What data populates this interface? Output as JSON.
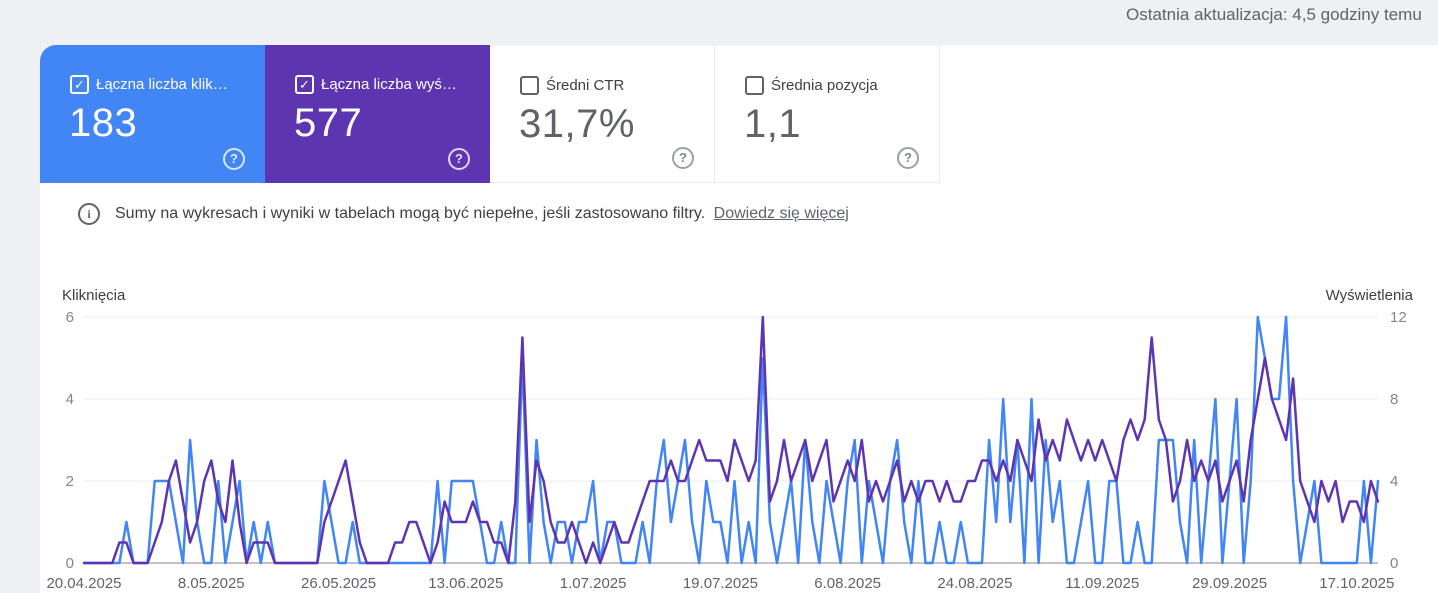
{
  "topbar": {
    "last_update": "Ostatnia aktualizacja: 4,5 godziny temu"
  },
  "colors": {
    "clicks": "#4285f4",
    "impressions": "#5e35b1",
    "grid": "#e9ebee",
    "zero_line": "#80868b",
    "tick_text": "#80868b",
    "date_text": "#5f6368"
  },
  "icons": {
    "checked": "✓",
    "help": "?",
    "info": "i"
  },
  "cards": [
    {
      "id": "clicks",
      "label": "Łączna liczba klik…",
      "value": "183",
      "selected": true
    },
    {
      "id": "impressions",
      "label": "Łączna liczba wyś…",
      "value": "577",
      "selected": true
    },
    {
      "id": "ctr",
      "label": "Średni CTR",
      "value": "31,7%",
      "selected": false
    },
    {
      "id": "position",
      "label": "Średnia pozycja",
      "value": "1,1",
      "selected": false
    }
  ],
  "notice": {
    "text": "Sumy na wykresach i wyniki w tabelach mogą być niepełne, jeśli zastosowano filtry.",
    "link": "Dowiedz się więcej"
  },
  "chart_data": {
    "type": "line",
    "left_axis": {
      "label": "Kliknięcia",
      "ticks": [
        0,
        2,
        4,
        6
      ],
      "max": 6
    },
    "right_axis": {
      "label": "Wyświetlenia",
      "ticks": [
        0,
        4,
        8,
        12
      ],
      "max": 12
    },
    "x_tick_labels": [
      "20.04.2025",
      "8.05.2025",
      "26.05.2025",
      "13.06.2025",
      "1.07.2025",
      "19.07.2025",
      "6.08.2025",
      "24.08.2025",
      "11.09.2025",
      "29.09.2025",
      "17.10.2025"
    ],
    "x_tick_indices": [
      0,
      18,
      36,
      54,
      72,
      90,
      108,
      126,
      144,
      162,
      180
    ],
    "grid": true,
    "series": [
      {
        "name": "Łączna liczba kliknięć",
        "axis": "left",
        "color": "#4285f4",
        "values": [
          0,
          0,
          0,
          0,
          0,
          0,
          1,
          0,
          0,
          0,
          2,
          2,
          2,
          1,
          0,
          3,
          1,
          0,
          0,
          2,
          0,
          1,
          2,
          0,
          1,
          0,
          1,
          0,
          0,
          0,
          0,
          0,
          0,
          0,
          2,
          1,
          0,
          0,
          1,
          0,
          0,
          0,
          0,
          0,
          0,
          0,
          0,
          0,
          0,
          0,
          2,
          0,
          2,
          2,
          2,
          2,
          1,
          0,
          0,
          1,
          0,
          0,
          5,
          0,
          3,
          1,
          0,
          1,
          1,
          0,
          1,
          1,
          2,
          0,
          1,
          1,
          0,
          0,
          0,
          1,
          0,
          2,
          3,
          1,
          2,
          3,
          1,
          0,
          2,
          1,
          1,
          0,
          2,
          0,
          1,
          0,
          5,
          1,
          0,
          1,
          2,
          0,
          3,
          1,
          0,
          2,
          1,
          0,
          2,
          3,
          0,
          2,
          1,
          0,
          2,
          3,
          1,
          0,
          2,
          0,
          0,
          1,
          0,
          0,
          1,
          0,
          0,
          0,
          3,
          1,
          4,
          1,
          3,
          0,
          4,
          0,
          3,
          1,
          2,
          0,
          0,
          1,
          2,
          0,
          0,
          2,
          2,
          0,
          0,
          1,
          0,
          0,
          3,
          3,
          3,
          1,
          0,
          3,
          0,
          2,
          4,
          0,
          2,
          4,
          0,
          2,
          6,
          5,
          4,
          4,
          6,
          2,
          0,
          1,
          2,
          0,
          0,
          0,
          0,
          0,
          0,
          2,
          0,
          2
        ]
      },
      {
        "name": "Łączna liczba wyświetleń",
        "axis": "right",
        "color": "#5e35b1",
        "values": [
          0,
          0,
          0,
          0,
          0,
          1,
          1,
          0,
          0,
          0,
          1,
          2,
          4,
          5,
          3,
          1,
          2,
          4,
          5,
          3,
          2,
          5,
          2,
          0,
          1,
          1,
          1,
          0,
          0,
          0,
          0,
          0,
          0,
          0,
          2,
          3,
          4,
          5,
          3,
          1,
          0,
          0,
          0,
          0,
          1,
          1,
          2,
          2,
          1,
          0,
          1,
          3,
          2,
          2,
          2,
          3,
          2,
          2,
          1,
          1,
          0,
          3,
          11,
          2,
          5,
          4,
          2,
          1,
          1,
          2,
          1,
          0,
          1,
          0,
          1,
          2,
          1,
          1,
          2,
          3,
          4,
          4,
          4,
          5,
          4,
          4,
          5,
          6,
          5,
          5,
          5,
          4,
          6,
          5,
          4,
          5,
          12,
          3,
          4,
          6,
          4,
          5,
          6,
          4,
          5,
          6,
          3,
          4,
          5,
          4,
          6,
          3,
          4,
          3,
          4,
          5,
          3,
          4,
          3,
          4,
          4,
          3,
          4,
          3,
          3,
          4,
          4,
          5,
          5,
          4,
          5,
          4,
          6,
          5,
          4,
          7,
          5,
          6,
          5,
          7,
          6,
          5,
          6,
          5,
          6,
          5,
          4,
          6,
          7,
          6,
          7,
          11,
          7,
          6,
          3,
          4,
          6,
          4,
          5,
          4,
          5,
          3,
          4,
          5,
          3,
          6,
          8,
          10,
          8,
          7,
          6,
          9,
          4,
          3,
          2,
          4,
          3,
          4,
          2,
          3,
          3,
          2,
          4,
          3
        ]
      }
    ]
  }
}
